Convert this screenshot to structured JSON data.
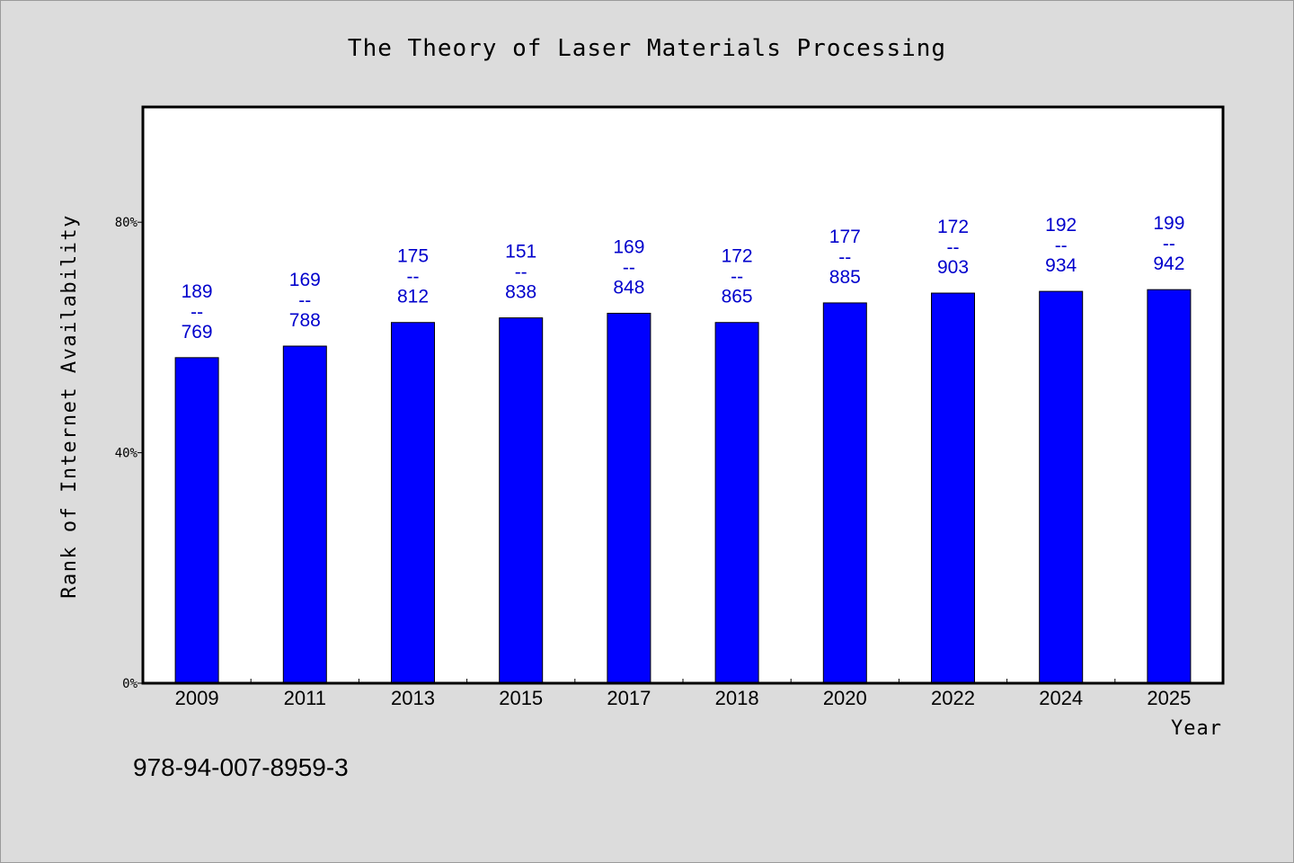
{
  "chart_data": {
    "type": "bar",
    "title": "The Theory of Laser Materials Processing",
    "xlabel": "Year",
    "ylabel": "Rank of Internet Availability",
    "categories": [
      "2009",
      "2011",
      "2013",
      "2015",
      "2017",
      "2018",
      "2020",
      "2022",
      "2024",
      "2025"
    ],
    "values": [
      56.5,
      58.5,
      62.6,
      63.4,
      64.2,
      62.6,
      66.0,
      67.7,
      68.0,
      68.3
    ],
    "bar_labels": [
      {
        "top": "189",
        "sep": "--",
        "bottom": "769"
      },
      {
        "top": "169",
        "sep": "--",
        "bottom": "788"
      },
      {
        "top": "175",
        "sep": "--",
        "bottom": "812"
      },
      {
        "top": "151",
        "sep": "--",
        "bottom": "838"
      },
      {
        "top": "169",
        "sep": "--",
        "bottom": "848"
      },
      {
        "top": "172",
        "sep": "--",
        "bottom": "865"
      },
      {
        "top": "177",
        "sep": "--",
        "bottom": "885"
      },
      {
        "top": "172",
        "sep": "--",
        "bottom": "903"
      },
      {
        "top": "192",
        "sep": "--",
        "bottom": "934"
      },
      {
        "top": "199",
        "sep": "--",
        "bottom": "942"
      }
    ],
    "yticks": [
      {
        "value": 0,
        "label": "0%"
      },
      {
        "value": 40,
        "label": "40%"
      },
      {
        "value": 80,
        "label": "80%"
      }
    ],
    "ylim": [
      0,
      100
    ],
    "grid": false,
    "legend": "none"
  },
  "footer_code": "978-94-007-8959-3",
  "colors": {
    "bar": "#0000ff",
    "label": "#0000cc",
    "background": "#dcdcdc",
    "plot_bg": "#ffffff"
  }
}
